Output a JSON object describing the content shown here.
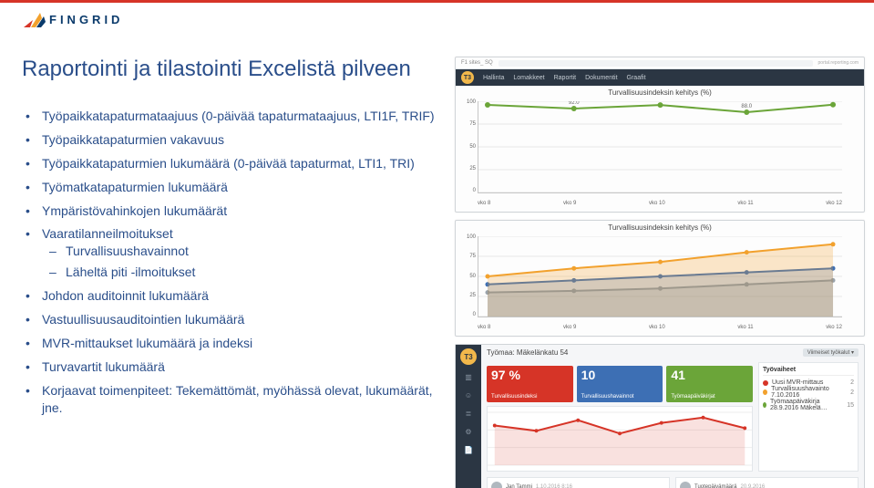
{
  "logo_text": "FINGRID",
  "title": "Raportointi ja tilastointi Excelistä pilveen",
  "bullets": [
    {
      "text": "Työpaikkatapaturmataajuus (0-päivää tapaturmataajuus, LTI1F, TRIF)",
      "children": []
    },
    {
      "text": "Työpaikkatapaturmien vakavuus",
      "children": []
    },
    {
      "text": "Työpaikkatapaturmien lukumäärä (0-päivää tapaturmat, LTI1, TRI)",
      "children": []
    },
    {
      "text": "Työmatkatapaturmien lukumäärä",
      "children": []
    },
    {
      "text": "Ympäristövahinkojen lukumäärät",
      "children": []
    },
    {
      "text": "Vaaratilanneilmoitukset",
      "children": [
        {
          "text": "Turvallisuushavainnot"
        },
        {
          "text": "Läheltä piti -ilmoitukset"
        }
      ]
    },
    {
      "text": "Johdon auditoinnit lukumäärä",
      "children": []
    },
    {
      "text": "Vastuullisuusauditointien lukumäärä",
      "children": []
    },
    {
      "text": "MVR-mittaukset lukumäärä ja indeksi",
      "children": []
    },
    {
      "text": "Turvavartit lukumäärä",
      "children": []
    },
    {
      "text": "Korjaavat toimenpiteet: Tekemättömät, myöhässä olevat, lukumäärät, jne.",
      "children": []
    }
  ],
  "browser": {
    "tab_label": "F1 sites_ SQ",
    "url_fragment": "portal.reporting.com"
  },
  "nav": {
    "logo_letter": "T3",
    "items": [
      "Hallinta",
      "Lomakkeet",
      "Raportit",
      "Dokumentit",
      "Graafit"
    ]
  },
  "chart1": {
    "type": "line",
    "title": "Turvallisuusindeksin kehitys (%)",
    "xlabels": [
      "vko 8",
      "vko 9",
      "vko 10",
      "vko 11",
      "vko 12"
    ],
    "ylabels": [
      "100",
      "75",
      "50",
      "25",
      "0"
    ],
    "ylim": [
      0,
      100
    ],
    "series": [
      96.0,
      92.0,
      95.9,
      88.0,
      96.2
    ],
    "line_color": "#6ba539",
    "marker_color": "#6ba539",
    "grid_color": "#e8e8e8",
    "label_color": "#666666",
    "label_fontsize": 6,
    "title_fontsize": 8,
    "background_color": "#ffffff"
  },
  "chart2": {
    "type": "line+area",
    "title": "Turvallisuusindeksin kehitys (%)",
    "xlabels": [
      "vko 8",
      "vko 9",
      "vko 10",
      "vko 11",
      "vko 12"
    ],
    "ylabels": [
      "100",
      "75",
      "50",
      "25",
      "0"
    ],
    "ylim": [
      0,
      100
    ],
    "orange": {
      "values": [
        50,
        60,
        68,
        80,
        90
      ],
      "stroke": "#f2a12d",
      "fill": "rgba(242,161,45,0.25)"
    },
    "blue": {
      "values": [
        40,
        45,
        50,
        55,
        60
      ],
      "stroke": "#3d6fb4",
      "fill": "rgba(61,111,180,0.25)"
    },
    "grey": {
      "values": [
        30,
        32,
        35,
        40,
        45
      ],
      "stroke": "#9aa3ab",
      "fill": "rgba(154,163,171,0.25)"
    },
    "grid_color": "#e8e8e8",
    "label_color": "#666666",
    "label_fontsize": 6,
    "title_fontsize": 8,
    "background_color": "#ffffff"
  },
  "dashboard": {
    "logo_letter": "T3",
    "header": "Työmaa: Mäkelänkatu 54",
    "header_right": "Viimeiset työkalut ▾",
    "side_icons": [
      "bar-chart-icon",
      "user-icon",
      "list-icon",
      "gear-icon",
      "file-icon"
    ],
    "tiles": [
      {
        "value": "97 %",
        "label": "Turvallisuusindeksi",
        "bg": "#d63427",
        "icon": "gauge-icon"
      },
      {
        "value": "10",
        "label": "Turvallisuushavainnot",
        "bg": "#3d6fb4",
        "icon": "eye-icon"
      },
      {
        "value": "41",
        "label": "Työmaapäiväkirjat",
        "bg": "#6ba539",
        "icon": "book-icon"
      }
    ],
    "mini_chart": {
      "type": "line",
      "ylim": [
        80,
        100
      ],
      "values": [
        95,
        93,
        97,
        92,
        96,
        98,
        94
      ],
      "line_color": "#d63427",
      "fill_color": "rgba(214,52,39,0.15)",
      "grid_color": "#eeeeee"
    },
    "side_list": {
      "header": "Työvaiheet",
      "rows": [
        {
          "dot": "#d63427",
          "label": "Uusi MVR-mittaus",
          "num": "2"
        },
        {
          "dot": "#f2a12d",
          "label": "Turvallisuushavainto 7.10.2016",
          "num": "2"
        },
        {
          "dot": "#6ba539",
          "label": "Työmaapäiväkirja 28.9.2016 Mäkelä…",
          "num": "15"
        }
      ]
    },
    "foot": [
      {
        "name": "Jan Tammi",
        "sub": "1.10.2016 8:16"
      },
      {
        "name": "Tuotepäivämäärä",
        "sub": "20.9.2016"
      }
    ]
  },
  "colors": {
    "brand_red": "#d63427",
    "brand_blue": "#2a4e8a",
    "nav_bg": "#2b3643",
    "grey_bg": "#f5f6f8"
  }
}
